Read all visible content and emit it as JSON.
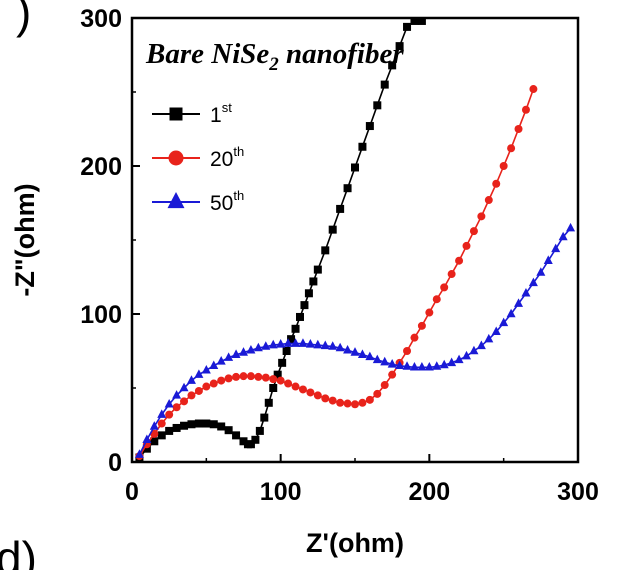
{
  "panel_labels": {
    "top": ")",
    "bottom": "d)"
  },
  "chart_data": {
    "type": "line",
    "title": {
      "main": "Bare NiSe",
      "sub": "2",
      "rest": " nanofiber"
    },
    "xlabel": "Z'(ohm)",
    "ylabel": "-Z\"(ohm)",
    "xlim": [
      0,
      300
    ],
    "ylim": [
      0,
      300
    ],
    "xticks": [
      0,
      100,
      200,
      300
    ],
    "yticks": [
      0,
      100,
      200,
      300
    ],
    "legend_position": "top-left",
    "series": [
      {
        "name": "1",
        "name_sup": "st",
        "color": "#000000",
        "marker": "square",
        "x": [
          5,
          10,
          15,
          20,
          25,
          30,
          35,
          40,
          45,
          50,
          55,
          60,
          65,
          70,
          75,
          78,
          80,
          83,
          86,
          89,
          92,
          95,
          98,
          101,
          104,
          107,
          110,
          113,
          116,
          119,
          122,
          125,
          130,
          135,
          140,
          145,
          150,
          155,
          160,
          165,
          170,
          175,
          180,
          185,
          190,
          195
        ],
        "y": [
          3,
          9,
          14,
          18,
          21,
          23,
          24.5,
          25.5,
          26,
          26,
          25.5,
          24,
          21.5,
          18,
          14,
          12,
          12,
          15,
          21,
          30,
          40,
          50,
          59,
          67,
          75,
          83,
          90,
          98,
          106,
          114,
          122,
          130,
          143,
          157,
          171,
          185,
          199,
          213,
          227,
          241,
          255,
          268,
          281,
          294,
          298,
          298
        ]
      },
      {
        "name": "20",
        "name_sup": "th",
        "color": "#e8231b",
        "marker": "circle",
        "x": [
          5,
          10,
          15,
          20,
          25,
          30,
          35,
          40,
          45,
          50,
          55,
          60,
          65,
          70,
          75,
          80,
          85,
          90,
          95,
          100,
          105,
          110,
          115,
          120,
          125,
          130,
          135,
          140,
          145,
          150,
          155,
          160,
          165,
          170,
          175,
          180,
          185,
          190,
          195,
          200,
          205,
          210,
          215,
          220,
          225,
          230,
          235,
          240,
          245,
          250,
          255,
          260,
          265,
          270
        ],
        "y": [
          4,
          12,
          19,
          26,
          32,
          37,
          41,
          45,
          48,
          51,
          53,
          55,
          56.5,
          57.5,
          58,
          58,
          57.5,
          57,
          56,
          55,
          53,
          51,
          49,
          47,
          45,
          43,
          41.5,
          40,
          39.5,
          39,
          40,
          42,
          46,
          52,
          59,
          67,
          75,
          84,
          92,
          101,
          110,
          118,
          127,
          136,
          146,
          156,
          166,
          177,
          188,
          200,
          212,
          225,
          238,
          252
        ]
      },
      {
        "name": "50",
        "name_sup": "th",
        "color": "#1a1ad6",
        "marker": "triangle",
        "x": [
          5,
          10,
          15,
          20,
          25,
          30,
          35,
          40,
          45,
          50,
          55,
          60,
          65,
          70,
          75,
          80,
          85,
          90,
          95,
          100,
          105,
          110,
          115,
          120,
          125,
          130,
          135,
          140,
          145,
          150,
          155,
          160,
          165,
          170,
          175,
          180,
          185,
          190,
          195,
          200,
          205,
          210,
          215,
          220,
          225,
          230,
          235,
          240,
          245,
          250,
          255,
          260,
          265,
          270,
          275,
          280,
          285,
          290,
          295
        ],
        "y": [
          5,
          15,
          24,
          32,
          39,
          45,
          50,
          55,
          59,
          62,
          65,
          68,
          70.5,
          72.5,
          74,
          75.5,
          77,
          78,
          79,
          79.5,
          80,
          80,
          80,
          79.5,
          79,
          78.5,
          78,
          77,
          75.5,
          74,
          72.5,
          71,
          69,
          67.5,
          66,
          65,
          64.5,
          64,
          64,
          64,
          64.5,
          65.5,
          67,
          69,
          71.5,
          75,
          78.5,
          83,
          88,
          94,
          100,
          107,
          114,
          121,
          128,
          136,
          144,
          152,
          158
        ]
      }
    ]
  }
}
